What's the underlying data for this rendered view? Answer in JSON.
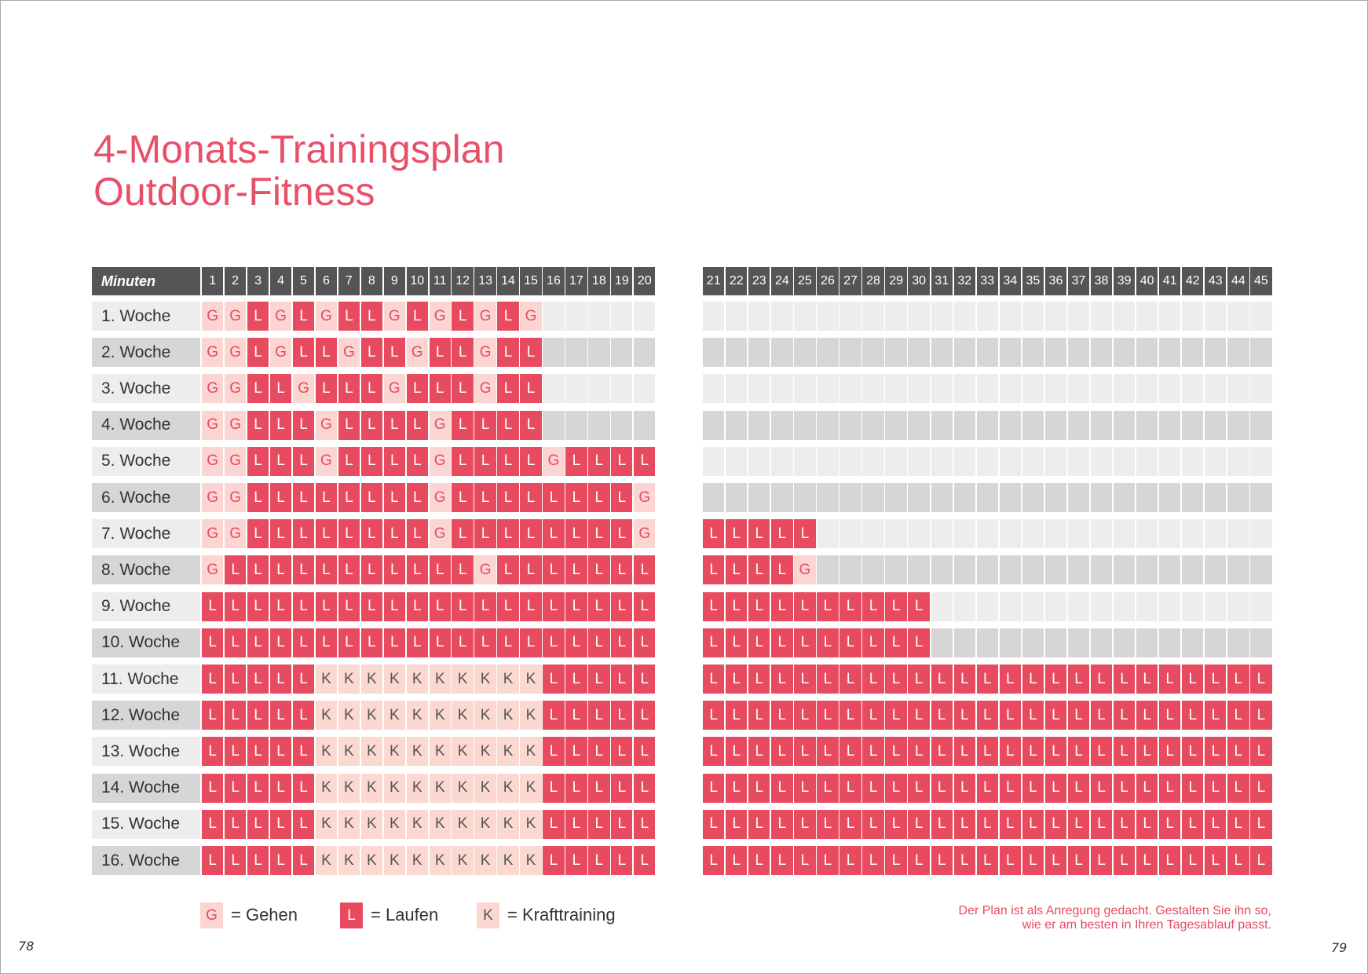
{
  "header": {
    "title_lines": [
      "4-Monats-Trainingsplan",
      "Outdoor-Fitness"
    ]
  },
  "table": {
    "header_label": "Minuten",
    "minutes": [
      1,
      2,
      3,
      4,
      5,
      6,
      7,
      8,
      9,
      10,
      11,
      12,
      13,
      14,
      15,
      16,
      17,
      18,
      19,
      20,
      21,
      22,
      23,
      24,
      25,
      26,
      27,
      28,
      29,
      30,
      31,
      32,
      33,
      34,
      35,
      36,
      37,
      38,
      39,
      40,
      41,
      42,
      43,
      44,
      45
    ],
    "rows": [
      {
        "label": "1. Woche",
        "cells": [
          "G",
          "G",
          "L",
          "G",
          "L",
          "G",
          "L",
          "L",
          "G",
          "L",
          "G",
          "L",
          "G",
          "L",
          "G"
        ]
      },
      {
        "label": "2. Woche",
        "cells": [
          "G",
          "G",
          "L",
          "G",
          "L",
          "L",
          "G",
          "L",
          "L",
          "G",
          "L",
          "L",
          "G",
          "L",
          "L"
        ]
      },
      {
        "label": "3. Woche",
        "cells": [
          "G",
          "G",
          "L",
          "L",
          "G",
          "L",
          "L",
          "L",
          "G",
          "L",
          "L",
          "L",
          "G",
          "L",
          "L"
        ]
      },
      {
        "label": "4. Woche",
        "cells": [
          "G",
          "G",
          "L",
          "L",
          "L",
          "G",
          "L",
          "L",
          "L",
          "L",
          "G",
          "L",
          "L",
          "L",
          "L"
        ]
      },
      {
        "label": "5. Woche",
        "cells": [
          "G",
          "G",
          "L",
          "L",
          "L",
          "G",
          "L",
          "L",
          "L",
          "L",
          "G",
          "L",
          "L",
          "L",
          "L",
          "G",
          "L",
          "L",
          "L",
          "L"
        ]
      },
      {
        "label": "6. Woche",
        "cells": [
          "G",
          "G",
          "L",
          "L",
          "L",
          "L",
          "L",
          "L",
          "L",
          "L",
          "G",
          "L",
          "L",
          "L",
          "L",
          "L",
          "L",
          "L",
          "L",
          "G"
        ]
      },
      {
        "label": "7. Woche",
        "cells": [
          "G",
          "G",
          "L",
          "L",
          "L",
          "L",
          "L",
          "L",
          "L",
          "L",
          "G",
          "L",
          "L",
          "L",
          "L",
          "L",
          "L",
          "L",
          "L",
          "G",
          "L",
          "L",
          "L",
          "L",
          "L"
        ]
      },
      {
        "label": "8. Woche",
        "cells": [
          "G",
          "L",
          "L",
          "L",
          "L",
          "L",
          "L",
          "L",
          "L",
          "L",
          "L",
          "L",
          "G",
          "L",
          "L",
          "L",
          "L",
          "L",
          "L",
          "L",
          "L",
          "L",
          "L",
          "L",
          "G"
        ]
      },
      {
        "label": "9. Woche",
        "cells": [
          "L",
          "L",
          "L",
          "L",
          "L",
          "L",
          "L",
          "L",
          "L",
          "L",
          "L",
          "L",
          "L",
          "L",
          "L",
          "L",
          "L",
          "L",
          "L",
          "L",
          "L",
          "L",
          "L",
          "L",
          "L",
          "L",
          "L",
          "L",
          "L",
          "L"
        ]
      },
      {
        "label": "10. Woche",
        "cells": [
          "L",
          "L",
          "L",
          "L",
          "L",
          "L",
          "L",
          "L",
          "L",
          "L",
          "L",
          "L",
          "L",
          "L",
          "L",
          "L",
          "L",
          "L",
          "L",
          "L",
          "L",
          "L",
          "L",
          "L",
          "L",
          "L",
          "L",
          "L",
          "L",
          "L"
        ]
      },
      {
        "label": "11. Woche",
        "cells": [
          "L",
          "L",
          "L",
          "L",
          "L",
          "K",
          "K",
          "K",
          "K",
          "K",
          "K",
          "K",
          "K",
          "K",
          "K",
          "L",
          "L",
          "L",
          "L",
          "L",
          "L",
          "L",
          "L",
          "L",
          "L",
          "L",
          "L",
          "L",
          "L",
          "L",
          "L",
          "L",
          "L",
          "L",
          "L",
          "L",
          "L",
          "L",
          "L",
          "L",
          "L",
          "L",
          "L",
          "L",
          "L"
        ]
      },
      {
        "label": "12. Woche",
        "cells": [
          "L",
          "L",
          "L",
          "L",
          "L",
          "K",
          "K",
          "K",
          "K",
          "K",
          "K",
          "K",
          "K",
          "K",
          "K",
          "L",
          "L",
          "L",
          "L",
          "L",
          "L",
          "L",
          "L",
          "L",
          "L",
          "L",
          "L",
          "L",
          "L",
          "L",
          "L",
          "L",
          "L",
          "L",
          "L",
          "L",
          "L",
          "L",
          "L",
          "L",
          "L",
          "L",
          "L",
          "L",
          "L"
        ]
      },
      {
        "label": "13. Woche",
        "cells": [
          "L",
          "L",
          "L",
          "L",
          "L",
          "K",
          "K",
          "K",
          "K",
          "K",
          "K",
          "K",
          "K",
          "K",
          "K",
          "L",
          "L",
          "L",
          "L",
          "L",
          "L",
          "L",
          "L",
          "L",
          "L",
          "L",
          "L",
          "L",
          "L",
          "L",
          "L",
          "L",
          "L",
          "L",
          "L",
          "L",
          "L",
          "L",
          "L",
          "L",
          "L",
          "L",
          "L",
          "L",
          "L"
        ]
      },
      {
        "label": "14. Woche",
        "cells": [
          "L",
          "L",
          "L",
          "L",
          "L",
          "K",
          "K",
          "K",
          "K",
          "K",
          "K",
          "K",
          "K",
          "K",
          "K",
          "L",
          "L",
          "L",
          "L",
          "L",
          "L",
          "L",
          "L",
          "L",
          "L",
          "L",
          "L",
          "L",
          "L",
          "L",
          "L",
          "L",
          "L",
          "L",
          "L",
          "L",
          "L",
          "L",
          "L",
          "L",
          "L",
          "L",
          "L",
          "L",
          "L"
        ]
      },
      {
        "label": "15. Woche",
        "cells": [
          "L",
          "L",
          "L",
          "L",
          "L",
          "K",
          "K",
          "K",
          "K",
          "K",
          "K",
          "K",
          "K",
          "K",
          "K",
          "L",
          "L",
          "L",
          "L",
          "L",
          "L",
          "L",
          "L",
          "L",
          "L",
          "L",
          "L",
          "L",
          "L",
          "L",
          "L",
          "L",
          "L",
          "L",
          "L",
          "L",
          "L",
          "L",
          "L",
          "L",
          "L",
          "L",
          "L",
          "L",
          "L"
        ]
      },
      {
        "label": "16. Woche",
        "cells": [
          "L",
          "L",
          "L",
          "L",
          "L",
          "K",
          "K",
          "K",
          "K",
          "K",
          "K",
          "K",
          "K",
          "K",
          "K",
          "L",
          "L",
          "L",
          "L",
          "L",
          "L",
          "L",
          "L",
          "L",
          "L",
          "L",
          "L",
          "L",
          "L",
          "L",
          "L",
          "L",
          "L",
          "L",
          "L",
          "L",
          "L",
          "L",
          "L",
          "L",
          "L",
          "L",
          "L",
          "L",
          "L"
        ]
      }
    ]
  },
  "legend": [
    {
      "symbol": "G",
      "text": "= Gehen"
    },
    {
      "symbol": "L",
      "text": "= Laufen"
    },
    {
      "symbol": "K",
      "text": "= Krafttraining"
    }
  ],
  "note": [
    "Der Plan ist als Anregung gedacht. Gestalten Sie ihn so,",
    "wie er am besten in Ihren Tagesablauf passt."
  ],
  "page_numbers": [
    "78",
    "79"
  ]
}
